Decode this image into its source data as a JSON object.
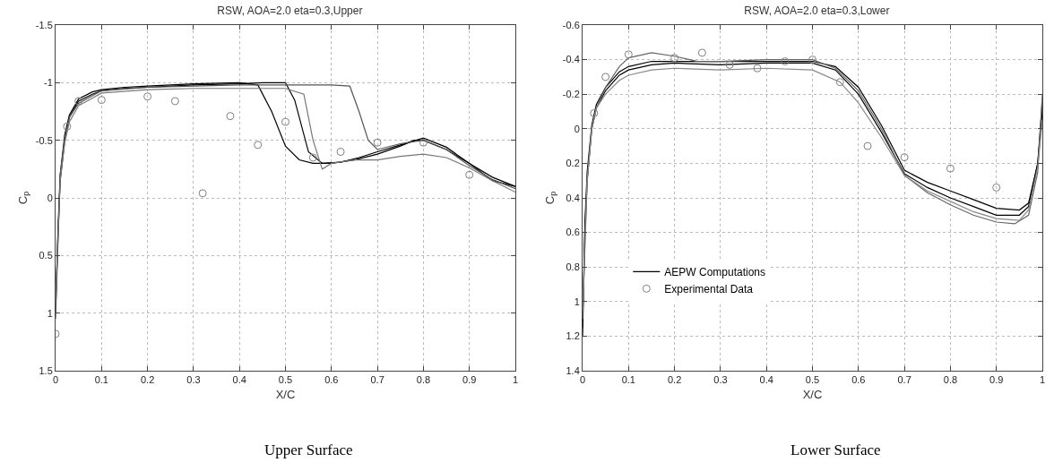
{
  "chart_data": [
    {
      "type": "line",
      "title": "RSW, AOA=2.0 eta=0.3,Upper",
      "xlabel": "X/C",
      "ylabel": "C$_{p}$",
      "annotations": [
        "Upper Surface"
      ],
      "xlim": [
        0,
        1
      ],
      "xticks": [
        0,
        0.1,
        0.2,
        0.3,
        0.4,
        0.5,
        0.6,
        0.7,
        0.8,
        0.9,
        1
      ],
      "ylim": [
        1.5,
        -1.5
      ],
      "yticks": [
        -1.5,
        -1,
        -0.5,
        0,
        0.5,
        1,
        1.5
      ],
      "grid": true,
      "legend": false,
      "line_style": "solid",
      "series": [
        {
          "color": "#000000",
          "x": [
            0,
            0.005,
            0.01,
            0.02,
            0.03,
            0.05,
            0.08,
            0.1,
            0.15,
            0.2,
            0.3,
            0.4,
            0.44,
            0.47,
            0.5,
            0.53,
            0.56,
            0.6,
            0.65,
            0.7,
            0.75,
            0.78,
            0.8,
            0.85,
            0.9,
            0.95,
            1
          ],
          "values": [
            1,
            0.3,
            -0.2,
            -0.55,
            -0.72,
            -0.86,
            -0.92,
            -0.94,
            -0.96,
            -0.97,
            -0.99,
            -1,
            -0.98,
            -0.75,
            -0.45,
            -0.33,
            -0.3,
            -0.3,
            -0.33,
            -0.38,
            -0.45,
            -0.5,
            -0.5,
            -0.42,
            -0.3,
            -0.15,
            -0.1
          ]
        },
        {
          "color": "#000000",
          "x": [
            0,
            0.005,
            0.01,
            0.02,
            0.03,
            0.05,
            0.08,
            0.1,
            0.15,
            0.2,
            0.3,
            0.4,
            0.45,
            0.5,
            0.52,
            0.55,
            0.58,
            0.62,
            0.66,
            0.7,
            0.75,
            0.8,
            0.85,
            0.9,
            0.95,
            1
          ],
          "values": [
            0.95,
            0.35,
            -0.15,
            -0.5,
            -0.7,
            -0.84,
            -0.9,
            -0.93,
            -0.95,
            -0.96,
            -0.98,
            -0.99,
            -1,
            -1,
            -0.85,
            -0.4,
            -0.3,
            -0.31,
            -0.35,
            -0.4,
            -0.46,
            -0.52,
            -0.44,
            -0.3,
            -0.18,
            -0.1
          ]
        },
        {
          "color": "#555555",
          "x": [
            0,
            0.01,
            0.02,
            0.03,
            0.05,
            0.1,
            0.2,
            0.3,
            0.4,
            0.5,
            0.6,
            0.64,
            0.66,
            0.68,
            0.7,
            0.75,
            0.8,
            0.85,
            0.9,
            0.95,
            1
          ],
          "values": [
            1.05,
            -0.2,
            -0.52,
            -0.7,
            -0.82,
            -0.93,
            -0.96,
            -0.97,
            -0.98,
            -0.98,
            -0.98,
            -0.97,
            -0.75,
            -0.5,
            -0.42,
            -0.47,
            -0.5,
            -0.42,
            -0.28,
            -0.16,
            -0.08
          ]
        },
        {
          "color": "#777777",
          "x": [
            0,
            0.01,
            0.02,
            0.03,
            0.05,
            0.1,
            0.2,
            0.3,
            0.4,
            0.45,
            0.5,
            0.54,
            0.56,
            0.58,
            0.6,
            0.65,
            0.7,
            0.75,
            0.8,
            0.85,
            0.9,
            0.95,
            1
          ],
          "values": [
            0.9,
            -0.15,
            -0.48,
            -0.66,
            -0.8,
            -0.91,
            -0.94,
            -0.95,
            -0.95,
            -0.95,
            -0.95,
            -0.9,
            -0.5,
            -0.25,
            -0.3,
            -0.33,
            -0.33,
            -0.36,
            -0.38,
            -0.35,
            -0.26,
            -0.15,
            -0.05
          ]
        },
        {
          "type": "scatter",
          "color": "#808080",
          "marker": "circle",
          "x": [
            0,
            0.025,
            0.05,
            0.1,
            0.2,
            0.26,
            0.32,
            0.38,
            0.44,
            0.5,
            0.56,
            0.62,
            0.7,
            0.8,
            0.9
          ],
          "values": [
            1.18,
            -0.62,
            -0.84,
            -0.85,
            -0.88,
            -0.84,
            -0.04,
            -0.71,
            -0.46,
            -0.66,
            -0.35,
            -0.4,
            -0.48,
            -0.48,
            -0.2
          ]
        }
      ]
    },
    {
      "type": "line",
      "title": "RSW, AOA=2.0 eta=0.3,Lower",
      "xlabel": "X/C",
      "ylabel": "C$_{p}$",
      "annotations": [
        "Lower Surface"
      ],
      "xlim": [
        0,
        1
      ],
      "xticks": [
        0,
        0.1,
        0.2,
        0.3,
        0.4,
        0.5,
        0.6,
        0.7,
        0.8,
        0.9,
        1
      ],
      "ylim": [
        1.4,
        -0.6
      ],
      "yticks": [
        -0.6,
        -0.4,
        -0.2,
        0,
        0.2,
        0.4,
        0.6,
        0.8,
        1,
        1.2,
        1.4
      ],
      "grid": true,
      "legend": "bottom left",
      "line_style": "solid",
      "series": [
        {
          "name": "AEPW Computations",
          "color": "#000000",
          "x": [
            0,
            0.005,
            0.01,
            0.02,
            0.03,
            0.05,
            0.08,
            0.1,
            0.15,
            0.2,
            0.3,
            0.4,
            0.5,
            0.55,
            0.6,
            0.65,
            0.7,
            0.75,
            0.8,
            0.85,
            0.9,
            0.95,
            0.97,
            0.99,
            1
          ],
          "values": [
            1.2,
            0.6,
            0.3,
            0,
            -0.12,
            -0.22,
            -0.31,
            -0.34,
            -0.37,
            -0.38,
            -0.37,
            -0.38,
            -0.38,
            -0.34,
            -0.2,
            0.02,
            0.26,
            0.34,
            0.4,
            0.45,
            0.5,
            0.5,
            0.45,
            0.2,
            -0.16
          ]
        },
        {
          "color": "#000000",
          "x": [
            0,
            0.005,
            0.01,
            0.02,
            0.03,
            0.05,
            0.08,
            0.1,
            0.15,
            0.2,
            0.3,
            0.4,
            0.5,
            0.55,
            0.6,
            0.65,
            0.7,
            0.75,
            0.8,
            0.85,
            0.9,
            0.95,
            0.97,
            0.99,
            1
          ],
          "values": [
            1.15,
            0.55,
            0.25,
            -0.02,
            -0.14,
            -0.24,
            -0.33,
            -0.36,
            -0.39,
            -0.39,
            -0.39,
            -0.39,
            -0.39,
            -0.36,
            -0.24,
            -0.02,
            0.24,
            0.31,
            0.36,
            0.41,
            0.46,
            0.47,
            0.43,
            0.2,
            -0.1
          ]
        },
        {
          "color": "#666666",
          "x": [
            0,
            0.01,
            0.02,
            0.03,
            0.05,
            0.08,
            0.1,
            0.15,
            0.2,
            0.25,
            0.3,
            0.4,
            0.5,
            0.55,
            0.6,
            0.65,
            0.7,
            0.75,
            0.8,
            0.85,
            0.9,
            0.94,
            0.97,
            0.99,
            1
          ],
          "values": [
            1.1,
            0.3,
            0,
            -0.12,
            -0.24,
            -0.36,
            -0.41,
            -0.44,
            -0.42,
            -0.39,
            -0.39,
            -0.4,
            -0.4,
            -0.35,
            -0.22,
            0,
            0.27,
            0.37,
            0.44,
            0.5,
            0.54,
            0.55,
            0.5,
            0.25,
            -0.2
          ]
        },
        {
          "color": "#888888",
          "x": [
            0,
            0.01,
            0.02,
            0.03,
            0.05,
            0.08,
            0.1,
            0.15,
            0.2,
            0.3,
            0.4,
            0.5,
            0.56,
            0.6,
            0.65,
            0.7,
            0.75,
            0.8,
            0.85,
            0.9,
            0.95,
            0.97,
            0.99,
            1
          ],
          "values": [
            1.05,
            0.3,
            0,
            -0.12,
            -0.2,
            -0.28,
            -0.31,
            -0.34,
            -0.35,
            -0.34,
            -0.35,
            -0.34,
            -0.27,
            -0.15,
            0.05,
            0.27,
            0.36,
            0.42,
            0.48,
            0.52,
            0.53,
            0.47,
            0.22,
            -0.05
          ]
        },
        {
          "type": "scatter",
          "name": "Experimental Data",
          "color": "#808080",
          "marker": "circle",
          "x": [
            0.025,
            0.05,
            0.1,
            0.2,
            0.26,
            0.32,
            0.38,
            0.44,
            0.5,
            0.56,
            0.62,
            0.7,
            0.8,
            0.9
          ],
          "values": [
            -0.09,
            -0.3,
            -0.43,
            -0.41,
            -0.44,
            -0.37,
            -0.35,
            -0.39,
            -0.4,
            -0.27,
            0.1,
            0.165,
            0.23,
            0.34
          ]
        }
      ]
    }
  ]
}
